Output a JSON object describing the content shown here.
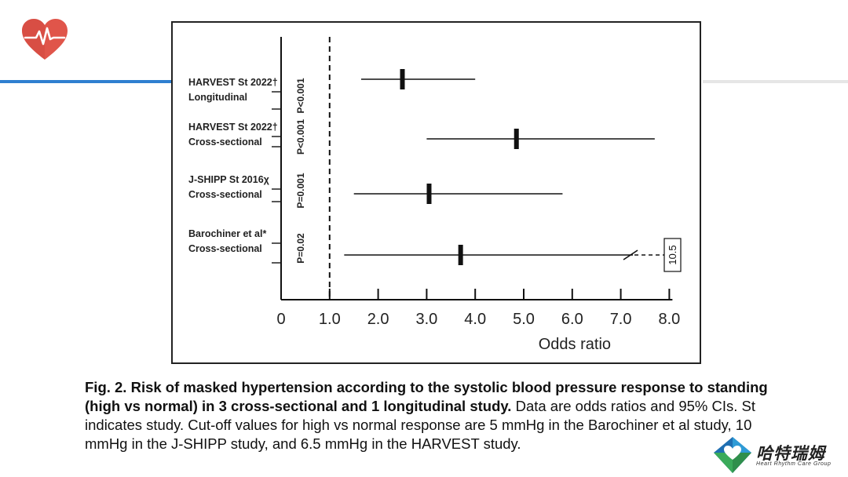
{
  "logo": {
    "icon": "heart-pulse-icon",
    "color": "#e0554a"
  },
  "accent": {
    "rule_left": "#2f7fd0",
    "rule_right": "#e6e6e6"
  },
  "chart_data": {
    "type": "forest",
    "xlim": [
      0,
      8
    ],
    "ticks": [
      "0",
      "1.0",
      "2.0",
      "3.0",
      "4.0",
      "5.0",
      "6.0",
      "7.0",
      "8.0"
    ],
    "tick_values": [
      0,
      1,
      2,
      3,
      4,
      5,
      6,
      7,
      8
    ],
    "xlabel": "Odds ratio",
    "reference_line": 1.0,
    "studies": [
      {
        "name": "HARVEST St 2022†",
        "design": "Longitudinal",
        "p": "P<0.001",
        "or": 2.5,
        "ci": [
          1.65,
          4.0
        ]
      },
      {
        "name": "HARVEST St 2022†",
        "design": "Cross-sectional",
        "p": "P<0.001",
        "or": 4.85,
        "ci": [
          3.0,
          7.7
        ]
      },
      {
        "name": "J-SHIPP St 2016χ",
        "design": "Cross-sectional",
        "p": "P=0.001",
        "or": 3.05,
        "ci": [
          1.5,
          5.8
        ]
      },
      {
        "name": "Barochiner et al*",
        "design": "Cross-sectional",
        "p": "P=0.02",
        "or": 3.7,
        "ci": [
          1.3,
          10.5
        ],
        "upper_label": "10.5"
      }
    ]
  },
  "caption": {
    "bold": "Fig. 2.  Risk of masked hypertension according to the systolic blood pressure response to standing (high vs normal) in 3 cross-sectional and 1 longitudinal study.",
    "text": " Data are odds ratios and 95% CIs. St indicates study. Cut-off values for high vs normal response are 5 mmHg in the Barochiner et al study, 10 mmHg in the J-SHIPP study, and 6.5 mmHg in the HARVEST study."
  },
  "brand": {
    "name": "哈特瑞姆",
    "subtitle": "Heart Rhythm Care Group",
    "icon": "diamond-heart-logo-icon",
    "colors": [
      "#2e9bd6",
      "#3aaa5a",
      "#1f6fb2"
    ]
  }
}
